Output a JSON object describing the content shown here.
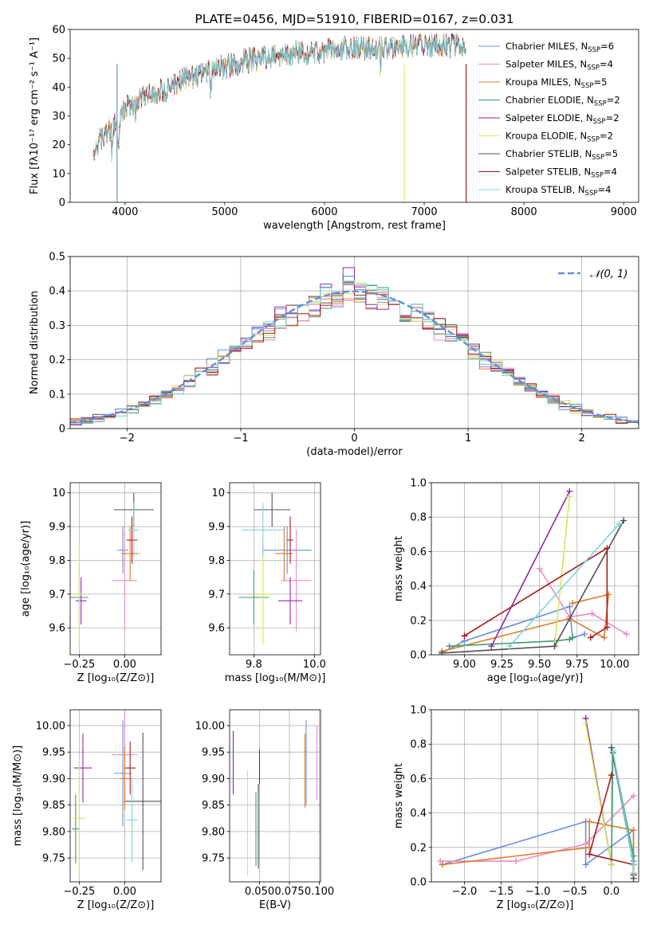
{
  "colors": [
    "#6a8fdb",
    "#e88cc4",
    "#e07b2a",
    "#3f9a6f",
    "#8c2aa8",
    "#d7e75a",
    "#505050",
    "#a81b1b",
    "#79d6dd"
  ],
  "chart_data": [
    {
      "id": "spectrum",
      "type": "line",
      "title": "PLATE=0456, MJD=51910, FIBERID=0167, z=0.031",
      "xlabel": "wavelength [Angstrom, rest frame]",
      "ylabel": "Flux [fλ10⁻¹⁷ erg cm⁻² s⁻¹ A⁻¹]",
      "xlim": [
        3450,
        9150
      ],
      "ylim": [
        0,
        60
      ],
      "xticks": [
        4000,
        5000,
        6000,
        7000,
        8000,
        9000
      ],
      "yticks": [
        0,
        10,
        20,
        30,
        40,
        50,
        60
      ],
      "grid": false,
      "legend": "right",
      "series": [
        {
          "name": "Chabrier MILES, N_SSP=6"
        },
        {
          "name": "Salpeter MILES, N_SSP=4"
        },
        {
          "name": "Kroupa MILES, N_SSP=5"
        },
        {
          "name": "Chabrier ELODIE, N_SSP=2"
        },
        {
          "name": "Salpeter ELODIE, N_SSP=2"
        },
        {
          "name": "Kroupa ELODIE, N_SSP=2"
        },
        {
          "name": "Chabrier STELIB, N_SSP=5"
        },
        {
          "name": "Salpeter STELIB, N_SSP=4"
        },
        {
          "name": "Kroupa STELIB, N_SSP=4"
        }
      ],
      "continuum": {
        "x": [
          3680,
          3800,
          3950,
          4000,
          4100,
          4250,
          4400,
          4600,
          4800,
          5000,
          5200,
          5500,
          5800,
          6100,
          6400,
          6700,
          7000,
          7200,
          7420
        ],
        "y": [
          18,
          24,
          28,
          33,
          35,
          37,
          39,
          43,
          45,
          47,
          49,
          51,
          52,
          53,
          53.5,
          54,
          54.5,
          54.5,
          54
        ]
      }
    },
    {
      "id": "residuals",
      "type": "histogram",
      "xlabel": "(data-model)/error",
      "ylabel": "Normed distribution",
      "xlim": [
        -2.5,
        2.5
      ],
      "ylim": [
        0,
        0.5
      ],
      "xticks": [
        -2,
        -1,
        0,
        1,
        2
      ],
      "yticks": [
        0,
        0.1,
        0.2,
        0.3,
        0.4,
        0.5
      ],
      "grid": true,
      "legend": "top-right",
      "legend_label": "𝒩(0, 1)",
      "bin_width": 0.1
    },
    {
      "id": "age-vs-z",
      "type": "errorbar",
      "xlabel": "Z [log₁₀(Z/Z⊙)]",
      "ylabel": "age  [log₁₀(age/yr)]",
      "xlim": [
        -0.3,
        0.2
      ],
      "ylim": [
        9.52,
        10.03
      ],
      "xticks": [
        -0.25,
        0.0
      ],
      "xticklabels": [
        "−0.25",
        "0.00"
      ],
      "yticks": [
        9.6,
        9.7,
        9.8,
        9.9,
        10.0
      ],
      "points": [
        {
          "x": -0.01,
          "y": 9.83,
          "xerr": 0.03,
          "yerr": 0.07
        },
        {
          "x": 0.0,
          "y": 9.74,
          "xerr": 0.07,
          "yerr": 0.15
        },
        {
          "x": 0.03,
          "y": 9.82,
          "xerr": 0.05,
          "yerr": 0.08
        },
        {
          "x": -0.25,
          "y": 9.69,
          "xerr": 0.05,
          "yerr": 0.08
        },
        {
          "x": -0.24,
          "y": 9.68,
          "xerr": 0.03,
          "yerr": 0.07
        },
        {
          "x": -0.25,
          "y": 9.7,
          "xerr": 0.02,
          "yerr": 0.15
        },
        {
          "x": 0.05,
          "y": 9.95,
          "xerr": 0.11,
          "yerr": 0.05
        },
        {
          "x": 0.04,
          "y": 9.86,
          "xerr": 0.03,
          "yerr": 0.07
        },
        {
          "x": 0.05,
          "y": 9.89,
          "xerr": 0.03,
          "yerr": 0.08
        }
      ]
    },
    {
      "id": "age-vs-mass",
      "type": "errorbar",
      "xlabel": "mass [log₁₀(M/M⊙)]",
      "ylabel": "",
      "xlim": [
        9.72,
        10.02
      ],
      "ylim": [
        9.52,
        10.03
      ],
      "xticks": [
        9.8,
        10.0
      ],
      "xticklabels": [
        "9.8",
        "10.0"
      ],
      "yticks": [
        9.6,
        9.7,
        9.8,
        9.9,
        10.0
      ],
      "points": [
        {
          "x": 9.91,
          "y": 9.83,
          "xerr": 0.08,
          "yerr": 0.07
        },
        {
          "x": 9.94,
          "y": 9.74,
          "xerr": 0.05,
          "yerr": 0.15
        },
        {
          "x": 9.9,
          "y": 9.82,
          "xerr": 0.03,
          "yerr": 0.08
        },
        {
          "x": 9.8,
          "y": 9.69,
          "xerr": 0.05,
          "yerr": 0.08
        },
        {
          "x": 9.92,
          "y": 9.68,
          "xerr": 0.04,
          "yerr": 0.07
        },
        {
          "x": 9.83,
          "y": 9.7,
          "xerr": 0.03,
          "yerr": 0.15
        },
        {
          "x": 9.86,
          "y": 9.95,
          "xerr": 0.06,
          "yerr": 0.05
        },
        {
          "x": 9.92,
          "y": 9.86,
          "xerr": 0.01,
          "yerr": 0.07
        },
        {
          "x": 9.83,
          "y": 9.89,
          "xerr": 0.07,
          "yerr": 0.08
        }
      ]
    },
    {
      "id": "weight-vs-age",
      "type": "line",
      "xlabel": "age  [log₁₀(age/yr)]",
      "ylabel": "mass weight",
      "xlim": [
        8.78,
        10.16
      ],
      "ylim": [
        0,
        1.0
      ],
      "xticks": [
        9.0,
        9.25,
        9.5,
        9.75,
        10.0
      ],
      "xticklabels": [
        "9.00",
        "9.25",
        "9.50",
        "9.75",
        "10.00"
      ],
      "yticks": [
        0,
        0.2,
        0.4,
        0.6,
        0.8,
        1.0
      ],
      "yticklabels": [
        "0.0",
        "0.2",
        "0.4",
        "0.6",
        "0.8",
        "1.0"
      ],
      "series": [
        {
          "x": [
            8.85,
            9.0,
            9.7,
            9.72,
            9.8
          ],
          "y": [
            0.01,
            0.08,
            0.28,
            0.1,
            0.12
          ]
        },
        {
          "x": [
            9.5,
            9.7,
            9.85,
            10.08
          ],
          "y": [
            0.5,
            0.22,
            0.24,
            0.12
          ]
        },
        {
          "x": [
            8.85,
            9.7,
            9.93,
            9.96,
            9.72
          ],
          "y": [
            0.02,
            0.21,
            0.1,
            0.35,
            0.3
          ]
        },
        {
          "x": [
            8.9,
            9.6,
            9.7,
            9.72
          ],
          "y": [
            0.05,
            0.08,
            0.09,
            0.1
          ]
        },
        {
          "x": [
            9.18,
            9.7
          ],
          "y": [
            0.05,
            0.95
          ]
        },
        {
          "x": [
            9.6,
            9.7
          ],
          "y": [
            0.05,
            0.92
          ]
        },
        {
          "x": [
            8.85,
            9.6,
            10.06
          ],
          "y": [
            0.01,
            0.05,
            0.78
          ]
        },
        {
          "x": [
            9.0,
            9.95,
            9.95,
            9.84
          ],
          "y": [
            0.11,
            0.62,
            0.16,
            0.1
          ]
        },
        {
          "x": [
            9.3,
            10.03
          ],
          "y": [
            0.05,
            0.76
          ]
        }
      ]
    },
    {
      "id": "mass-vs-z",
      "type": "errorbar",
      "xlabel": "Z [log₁₀(Z/Z⊙)]",
      "ylabel": "mass [log₁₀(M/M⊙)]",
      "xlim": [
        -0.3,
        0.2
      ],
      "ylim": [
        9.705,
        10.03
      ],
      "xticks": [
        -0.25,
        0.0
      ],
      "xticklabels": [
        "−0.25",
        "0.00"
      ],
      "yticks": [
        9.75,
        9.8,
        9.85,
        9.9,
        9.95,
        10.0
      ],
      "yticklabels": [
        "9.75",
        "9.80",
        "9.85",
        "9.90",
        "9.95",
        "10.00"
      ],
      "points": [
        {
          "x": -0.01,
          "y": 9.91,
          "xerr": 0.05,
          "yerr": 0.1
        },
        {
          "x": 0.0,
          "y": 9.945,
          "xerr": 0.07,
          "yerr": 0.09
        },
        {
          "x": 0.0,
          "y": 9.9,
          "xerr": 0.03,
          "yerr": 0.06
        },
        {
          "x": -0.27,
          "y": 9.805,
          "xerr": 0.02,
          "yerr": 0.065
        },
        {
          "x": -0.23,
          "y": 9.92,
          "xerr": 0.05,
          "yerr": 0.065
        },
        {
          "x": -0.25,
          "y": 9.825,
          "xerr": 0.04,
          "yerr": 0.11
        },
        {
          "x": 0.1,
          "y": 9.857,
          "xerr": 0.1,
          "yerr": 0.13
        },
        {
          "x": 0.03,
          "y": 9.92,
          "xerr": 0.03,
          "yerr": 0.05
        },
        {
          "x": 0.04,
          "y": 9.822,
          "xerr": 0.03,
          "yerr": 0.08
        }
      ]
    },
    {
      "id": "mass-vs-ebv",
      "type": "errorbar",
      "xlabel": "E(B-V)",
      "ylabel": "",
      "xlim": [
        0.025,
        0.101
      ],
      "ylim": [
        9.705,
        10.03
      ],
      "xticks": [
        0.05,
        0.075,
        0.1
      ],
      "xticklabels": [
        "0.050",
        "0.075",
        "0.100"
      ],
      "yticks": [
        9.75,
        9.8,
        9.85,
        9.9,
        9.95,
        10.0
      ],
      "yticklabels": [
        "9.75",
        "9.80",
        "9.85",
        "9.90",
        "9.95",
        "10.00"
      ],
      "points": [
        {
          "x": 0.089,
          "y": 9.93,
          "xerr": 0,
          "yerr": 0.08
        },
        {
          "x": 0.098,
          "y": 9.93,
          "xerr": 0,
          "yerr": 0.07
        },
        {
          "x": 0.088,
          "y": 9.915,
          "xerr": 0,
          "yerr": 0.07
        },
        {
          "x": 0.047,
          "y": 9.805,
          "xerr": 0,
          "yerr": 0.07
        },
        {
          "x": 0.028,
          "y": 9.93,
          "xerr": 0,
          "yerr": 0.06
        },
        {
          "x": 0.04,
          "y": 9.815,
          "xerr": 0,
          "yerr": 0.1
        },
        {
          "x": 0.049,
          "y": 9.81,
          "xerr": 0,
          "yerr": 0.08
        },
        {
          "x": 0.05,
          "y": 9.915,
          "xerr": 0,
          "yerr": 0.04
        },
        {
          "x": 0.05,
          "y": 9.82,
          "xerr": 0,
          "yerr": 0.07
        }
      ]
    },
    {
      "id": "weight-vs-z",
      "type": "line",
      "xlabel": "Z [log₁₀(Z/Z⊙)]",
      "ylabel": "mass weight",
      "xlim": [
        -2.45,
        0.37
      ],
      "ylim": [
        0,
        1.0
      ],
      "xticks": [
        -2.0,
        -1.5,
        -1.0,
        -0.5,
        0.0
      ],
      "xticklabels": [
        "−2.0",
        "−1.5",
        "−1.0",
        "−0.5",
        "0.0"
      ],
      "yticks": [
        0,
        0.2,
        0.4,
        0.6,
        0.8,
        1.0
      ],
      "yticklabels": [
        "0.0",
        "0.2",
        "0.4",
        "0.6",
        "0.8",
        "1.0"
      ],
      "series": [
        {
          "x": [
            -2.3,
            -0.35,
            -0.35,
            0.3,
            0.3
          ],
          "y": [
            0.1,
            0.35,
            0.1,
            0.3,
            0.12
          ]
        },
        {
          "x": [
            -2.33,
            -1.3,
            -0.35,
            0.3
          ],
          "y": [
            0.12,
            0.12,
            0.22,
            0.5
          ]
        },
        {
          "x": [
            -2.3,
            -0.3,
            -0.3,
            0.3,
            0.3
          ],
          "y": [
            0.1,
            0.2,
            0.35,
            0.3,
            0.1
          ]
        },
        {
          "x": [
            0.0,
            0.02,
            0.3,
            0.3
          ],
          "y": [
            0.1,
            0.75,
            0.15,
            0.05
          ]
        },
        {
          "x": [
            -0.35,
            0.0
          ],
          "y": [
            0.95,
            0.1
          ]
        },
        {
          "x": [
            -0.35,
            0.0
          ],
          "y": [
            0.92,
            0.1
          ]
        },
        {
          "x": [
            0.0,
            0.3,
            0.3
          ],
          "y": [
            0.78,
            0.1,
            0.02
          ]
        },
        {
          "x": [
            0.0,
            -0.3,
            0.3,
            0.3
          ],
          "y": [
            0.62,
            0.16,
            0.1,
            0.04
          ]
        },
        {
          "x": [
            0.02,
            0.3,
            0.3
          ],
          "y": [
            0.76,
            0.1,
            0.05
          ]
        }
      ]
    }
  ]
}
